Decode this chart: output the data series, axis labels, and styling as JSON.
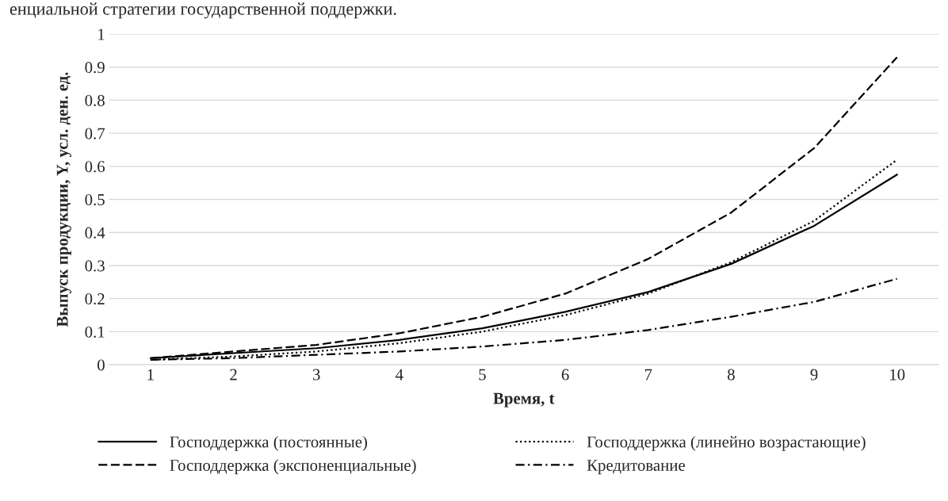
{
  "chart_data": {
    "type": "line",
    "annotations": [
      "енциальной стратегии государственной поддержки."
    ],
    "xlabel": "Время, t",
    "ylabel": "Выпуск продукции, Y, усл. ден. ед.",
    "categories": [
      "1",
      "2",
      "3",
      "4",
      "5",
      "6",
      "7",
      "8",
      "9",
      "10"
    ],
    "ylim": [
      0,
      1
    ],
    "yticks": [
      0,
      0.1,
      0.2,
      0.3,
      0.4,
      0.5,
      0.6,
      0.7,
      0.8,
      0.9,
      1
    ],
    "grid": "y",
    "legend": "bottom",
    "marker": "none",
    "series": [
      {
        "name": "Господдержка (постоянные)",
        "color": "#000000",
        "line_style": "solid",
        "values": [
          0.02,
          0.035,
          0.05,
          0.075,
          0.11,
          0.16,
          0.22,
          0.305,
          0.42,
          0.575
        ]
      },
      {
        "name": "Господдержка (линейно возрастающие)",
        "color": "#000000",
        "line_style": "dotted",
        "values": [
          0.015,
          0.025,
          0.04,
          0.065,
          0.1,
          0.15,
          0.215,
          0.31,
          0.435,
          0.62
        ]
      },
      {
        "name": "Господдержка (экспоненциальные)",
        "color": "#000000",
        "line_style": "dashed",
        "values": [
          0.02,
          0.04,
          0.06,
          0.095,
          0.145,
          0.215,
          0.32,
          0.46,
          0.655,
          0.93
        ]
      },
      {
        "name": "Кредитование",
        "color": "#000000",
        "line_style": "dashdot",
        "values": [
          0.015,
          0.02,
          0.03,
          0.04,
          0.055,
          0.075,
          0.105,
          0.145,
          0.19,
          0.26
        ]
      }
    ]
  }
}
